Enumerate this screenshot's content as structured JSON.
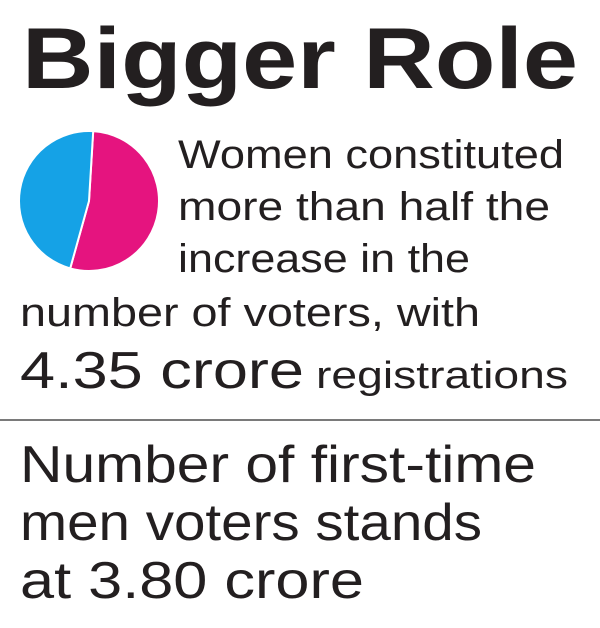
{
  "chart_data": {
    "type": "pie",
    "title": "Bigger Role",
    "values": [
      4.35,
      3.8
    ],
    "colors": [
      "#e5147f",
      "#15a2e6"
    ]
  },
  "caption": {
    "lines": [
      "Women constituted",
      "more than half the",
      "increase in the",
      "number of voters, with"
    ],
    "figure": "4.35 crore",
    "figure_note": "registrations"
  },
  "note": {
    "lines": [
      "Number of first-time",
      "men voters stands",
      "at 3.80 crore"
    ]
  }
}
